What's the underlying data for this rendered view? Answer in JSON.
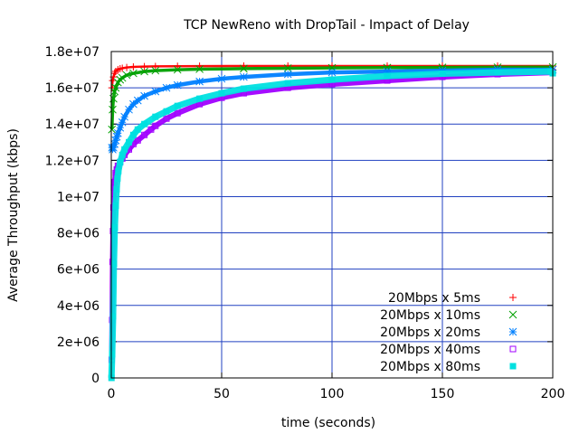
{
  "chart_data": {
    "type": "scatter",
    "title": "TCP NewReno with DropTail - Impact of Delay",
    "xlabel": "time (seconds)",
    "ylabel": "Average Throughput (kbps)",
    "xlim": [
      0,
      200
    ],
    "ylim": [
      0,
      18000000
    ],
    "xticks": [
      0,
      50,
      100,
      150,
      200
    ],
    "xtick_labels": [
      "0",
      "50",
      "100",
      "150",
      "200"
    ],
    "yticks": [
      0,
      2000000,
      4000000,
      6000000,
      8000000,
      10000000,
      12000000,
      14000000,
      16000000,
      18000000
    ],
    "ytick_labels": [
      "0",
      "2e+06",
      "4e+06",
      "6e+06",
      "8e+06",
      "1e+07",
      "1.2e+07",
      "1.4e+07",
      "1.6e+07",
      "1.8e+07"
    ],
    "grid": true,
    "legend_position": "bottom-right",
    "series": [
      {
        "name": "20Mbps x 5ms",
        "marker": "plus",
        "color": "#ff0000",
        "x": [
          0.3,
          0.6,
          1,
          1.5,
          2,
          3,
          4,
          5,
          7,
          10,
          15,
          20,
          30,
          40,
          60,
          80,
          100,
          125,
          150,
          175,
          200
        ],
        "y": [
          16000000,
          16400000,
          16600000,
          16800000,
          16900000,
          17000000,
          17050000,
          17080000,
          17120000,
          17150000,
          17170000,
          17180000,
          17190000,
          17195000,
          17200000,
          17200000,
          17200000,
          17200000,
          17200000,
          17200000,
          17200000
        ]
      },
      {
        "name": "20Mbps x 10ms",
        "marker": "cross",
        "color": "#00a000",
        "x": [
          0.3,
          0.6,
          1,
          1.5,
          2,
          3,
          4,
          5,
          7,
          10,
          15,
          20,
          30,
          40,
          60,
          80,
          100,
          125,
          150,
          175,
          200
        ],
        "y": [
          13700000,
          14800000,
          15400000,
          15800000,
          16000000,
          16300000,
          16450000,
          16550000,
          16700000,
          16800000,
          16900000,
          16950000,
          17000000,
          17030000,
          17060000,
          17080000,
          17100000,
          17110000,
          17120000,
          17130000,
          17140000
        ]
      },
      {
        "name": "20Mbps x 20ms",
        "marker": "star",
        "color": "#0080ff",
        "x": [
          0.3,
          0.6,
          1,
          1.5,
          2,
          2.5,
          3,
          4,
          5,
          6,
          8,
          10,
          12,
          15,
          20,
          25,
          30,
          40,
          50,
          60,
          80,
          100,
          125,
          150,
          175,
          200
        ],
        "y": [
          12700000,
          12600000,
          12700000,
          12900000,
          13100000,
          13300000,
          13500000,
          13800000,
          14100000,
          14400000,
          14800000,
          15100000,
          15300000,
          15550000,
          15800000,
          16000000,
          16150000,
          16350000,
          16500000,
          16600000,
          16750000,
          16850000,
          16900000,
          16950000,
          17000000,
          17000000
        ]
      },
      {
        "name": "20Mbps x 40ms",
        "marker": "square-open",
        "color": "#a000ff",
        "x": [
          0.2,
          0.4,
          0.6,
          0.8,
          1,
          1.2,
          1.5,
          2,
          2.5,
          3,
          4,
          5,
          6,
          8,
          10,
          12,
          15,
          18,
          20,
          25,
          30,
          40,
          50,
          60,
          80,
          100,
          125,
          150,
          175,
          200
        ],
        "y": [
          1000000,
          3200000,
          6400000,
          8100000,
          9400000,
          10500000,
          10800000,
          11300000,
          11500000,
          11700000,
          11900000,
          12100000,
          12300000,
          12600000,
          12900000,
          13100000,
          13400000,
          13700000,
          13900000,
          14300000,
          14600000,
          15100000,
          15450000,
          15700000,
          16000000,
          16200000,
          16400000,
          16600000,
          16750000,
          16850000
        ]
      },
      {
        "name": "20Mbps x 80ms",
        "marker": "square-filled",
        "color": "#00e0e0",
        "x": [
          0.1,
          0.4,
          0.8,
          1.2,
          1.6,
          2,
          2.4,
          2.8,
          3.2,
          4,
          5,
          6,
          8,
          10,
          12,
          15,
          20,
          25,
          30,
          40,
          50,
          60,
          80,
          100,
          125,
          150,
          175,
          199,
          200
        ],
        "y": [
          0,
          1300000,
          3400000,
          6300000,
          8300000,
          9500000,
          10400000,
          11000000,
          11400000,
          11900000,
          12300000,
          12600000,
          13000000,
          13400000,
          13700000,
          14000000,
          14400000,
          14700000,
          15000000,
          15400000,
          15700000,
          15950000,
          16250000,
          16450000,
          16650000,
          16780000,
          16850000,
          16900000,
          16800000
        ]
      }
    ]
  }
}
